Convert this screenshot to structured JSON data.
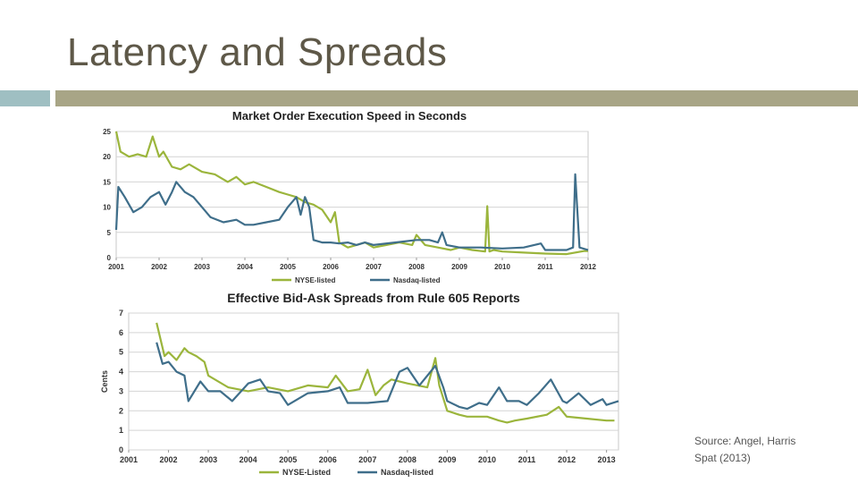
{
  "slide": {
    "title": "Latency and Spreads",
    "source_line1": "Source: Angel, Harris",
    "source_line2": "Spat (2013)"
  },
  "colors": {
    "nyse": "#9bb53c",
    "nasdaq": "#3f6e8a",
    "title_bar": "#a8a586",
    "accent_bar": "#9fbfc2"
  },
  "chart_data": [
    {
      "type": "line",
      "title": "Market Order Execution Speed in Seconds",
      "xlim": [
        2001,
        2012
      ],
      "ylim": [
        0,
        25
      ],
      "xticks": [
        "2001",
        "2002",
        "2003",
        "2004",
        "2005",
        "2006",
        "2007",
        "2008",
        "2009",
        "2010",
        "2011",
        "2012"
      ],
      "yticks": [
        "0",
        "5",
        "10",
        "15",
        "20",
        "25"
      ],
      "legend_position": "bottom",
      "series": [
        {
          "name": "NYSE-listed",
          "color": "#9bb53c",
          "x": [
            2001.0,
            2001.1,
            2001.3,
            2001.5,
            2001.7,
            2001.85,
            2002.0,
            2002.1,
            2002.3,
            2002.5,
            2002.7,
            2003.0,
            2003.3,
            2003.6,
            2003.8,
            2004.0,
            2004.2,
            2004.5,
            2004.8,
            2005.0,
            2005.2,
            2005.4,
            2005.6,
            2005.8,
            2006.0,
            2006.1,
            2006.2,
            2006.4,
            2006.6,
            2006.8,
            2007.0,
            2007.3,
            2007.6,
            2007.9,
            2008.0,
            2008.2,
            2008.5,
            2008.8,
            2009.0,
            2009.3,
            2009.6,
            2009.65,
            2009.7,
            2009.8,
            2010.0,
            2010.5,
            2011.0,
            2011.5,
            2011.9,
            2012.0
          ],
          "y": [
            25,
            21,
            20,
            20.5,
            20,
            24,
            20,
            21,
            18,
            17.5,
            18.5,
            17,
            16.5,
            15,
            16,
            14.5,
            15,
            14,
            13,
            12.5,
            12,
            11,
            10.5,
            9.5,
            7,
            9,
            3,
            2,
            2.5,
            3,
            2,
            2.5,
            3,
            2.5,
            4.5,
            2.5,
            2,
            1.5,
            2,
            1.5,
            1.2,
            10.2,
            1.2,
            1.5,
            1.2,
            1.0,
            0.8,
            0.7,
            1.3,
            1.3
          ]
        },
        {
          "name": "Nasdaq-listed",
          "color": "#3f6e8a",
          "x": [
            2001.0,
            2001.05,
            2001.2,
            2001.4,
            2001.6,
            2001.8,
            2002.0,
            2002.15,
            2002.3,
            2002.4,
            2002.6,
            2002.8,
            2003.0,
            2003.2,
            2003.5,
            2003.8,
            2004.0,
            2004.2,
            2004.5,
            2004.8,
            2005.0,
            2005.2,
            2005.3,
            2005.4,
            2005.5,
            2005.6,
            2005.8,
            2006.0,
            2006.2,
            2006.4,
            2006.6,
            2006.8,
            2007.0,
            2007.5,
            2008.0,
            2008.3,
            2008.5,
            2008.6,
            2008.7,
            2009.0,
            2009.5,
            2010.0,
            2010.5,
            2010.9,
            2011.0,
            2011.5,
            2011.65,
            2011.7,
            2011.8,
            2012.0
          ],
          "y": [
            5.5,
            14,
            12,
            9,
            10,
            12,
            13,
            10.5,
            13,
            15,
            13,
            12,
            10,
            8,
            7,
            7.5,
            6.5,
            6.5,
            7,
            7.5,
            10,
            12,
            8.5,
            12,
            10,
            3.5,
            3,
            3,
            2.8,
            3,
            2.5,
            3,
            2.5,
            3,
            3.5,
            3.5,
            3,
            5,
            2.5,
            2,
            2,
            1.8,
            2,
            2.8,
            1.5,
            1.5,
            2,
            16.5,
            2,
            1.5
          ]
        }
      ]
    },
    {
      "type": "line",
      "title": "Effective Bid-Ask Spreads from Rule 605 Reports",
      "ylabel": "Cents",
      "xlim": [
        2001,
        2013.3
      ],
      "ylim": [
        0,
        7
      ],
      "xticks": [
        "2001",
        "2002",
        "2003",
        "2004",
        "2005",
        "2006",
        "2007",
        "2008",
        "2009",
        "2010",
        "2011",
        "2012",
        "2013"
      ],
      "yticks": [
        "0",
        "1",
        "2",
        "3",
        "4",
        "5",
        "6",
        "7"
      ],
      "legend_position": "bottom",
      "series": [
        {
          "name": "NYSE-Listed",
          "color": "#9bb53c",
          "x": [
            2001.7,
            2001.9,
            2002.0,
            2002.2,
            2002.4,
            2002.5,
            2002.7,
            2002.9,
            2003.0,
            2003.5,
            2004.0,
            2004.5,
            2005.0,
            2005.5,
            2006.0,
            2006.2,
            2006.5,
            2006.8,
            2007.0,
            2007.2,
            2007.4,
            2007.6,
            2008.0,
            2008.5,
            2008.7,
            2008.8,
            2009.0,
            2009.3,
            2009.5,
            2010.0,
            2010.3,
            2010.5,
            2010.7,
            2011.0,
            2011.5,
            2011.8,
            2012.0,
            2012.5,
            2013.0,
            2013.2
          ],
          "y": [
            6.5,
            4.8,
            5,
            4.6,
            5.2,
            5,
            4.8,
            4.5,
            3.8,
            3.2,
            3,
            3.2,
            3,
            3.3,
            3.2,
            3.8,
            3,
            3.1,
            4.1,
            2.8,
            3.3,
            3.6,
            3.4,
            3.2,
            4.7,
            3.3,
            2.0,
            1.8,
            1.7,
            1.7,
            1.5,
            1.4,
            1.5,
            1.6,
            1.8,
            2.2,
            1.7,
            1.6,
            1.5,
            1.5
          ]
        },
        {
          "name": "Nasdaq-listed",
          "color": "#3f6e8a",
          "x": [
            2001.7,
            2001.85,
            2002.0,
            2002.2,
            2002.4,
            2002.5,
            2002.8,
            2003.0,
            2003.3,
            2003.6,
            2004.0,
            2004.3,
            2004.5,
            2004.8,
            2005.0,
            2005.5,
            2006.0,
            2006.3,
            2006.5,
            2007.0,
            2007.5,
            2007.8,
            2008.0,
            2008.3,
            2008.7,
            2008.9,
            2009.0,
            2009.3,
            2009.5,
            2009.8,
            2010.0,
            2010.3,
            2010.5,
            2010.8,
            2011.0,
            2011.3,
            2011.6,
            2011.9,
            2012.0,
            2012.3,
            2012.6,
            2012.9,
            2013.0,
            2013.3
          ],
          "y": [
            5.5,
            4.4,
            4.5,
            4,
            3.8,
            2.5,
            3.5,
            3.0,
            3,
            2.5,
            3.4,
            3.6,
            3,
            2.9,
            2.3,
            2.9,
            3.0,
            3.2,
            2.4,
            2.4,
            2.5,
            4.0,
            4.2,
            3.3,
            4.3,
            3.2,
            2.5,
            2.2,
            2.1,
            2.4,
            2.3,
            3.2,
            2.5,
            2.5,
            2.3,
            2.9,
            3.6,
            2.5,
            2.4,
            2.9,
            2.3,
            2.6,
            2.3,
            2.5
          ]
        }
      ]
    }
  ]
}
